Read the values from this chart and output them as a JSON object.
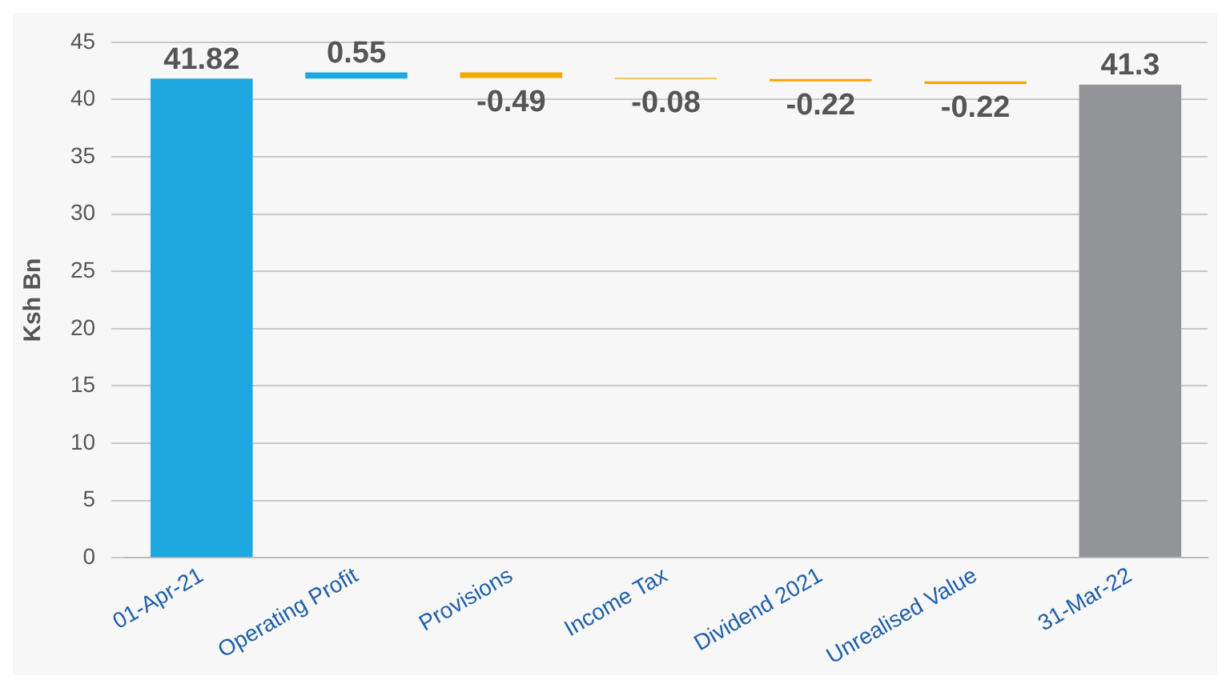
{
  "chart_data": {
    "type": "bar",
    "ylabel": "Ksh Bn",
    "categories": [
      "01-Apr-21",
      "Operating Profit",
      "Provisions",
      "Income Tax",
      "Dividend 2021",
      "Unrealised Value",
      "31-Mar-22"
    ],
    "values": [
      41.82,
      0.55,
      -0.49,
      -0.08,
      -0.22,
      -0.22,
      41.3
    ],
    "base": [
      0,
      41.82,
      42.37,
      41.88,
      41.8,
      41.58,
      0
    ],
    "colors": [
      "#1fa8e0",
      "#1fa8e0",
      "#f5a800",
      "#f5a800",
      "#f5a800",
      "#f5a800",
      "#939498"
    ],
    "ylim": [
      0,
      45
    ],
    "yticks": [
      0,
      5,
      10,
      15,
      20,
      25,
      30,
      35,
      40,
      45
    ],
    "grid": "y",
    "data_labels": true
  }
}
